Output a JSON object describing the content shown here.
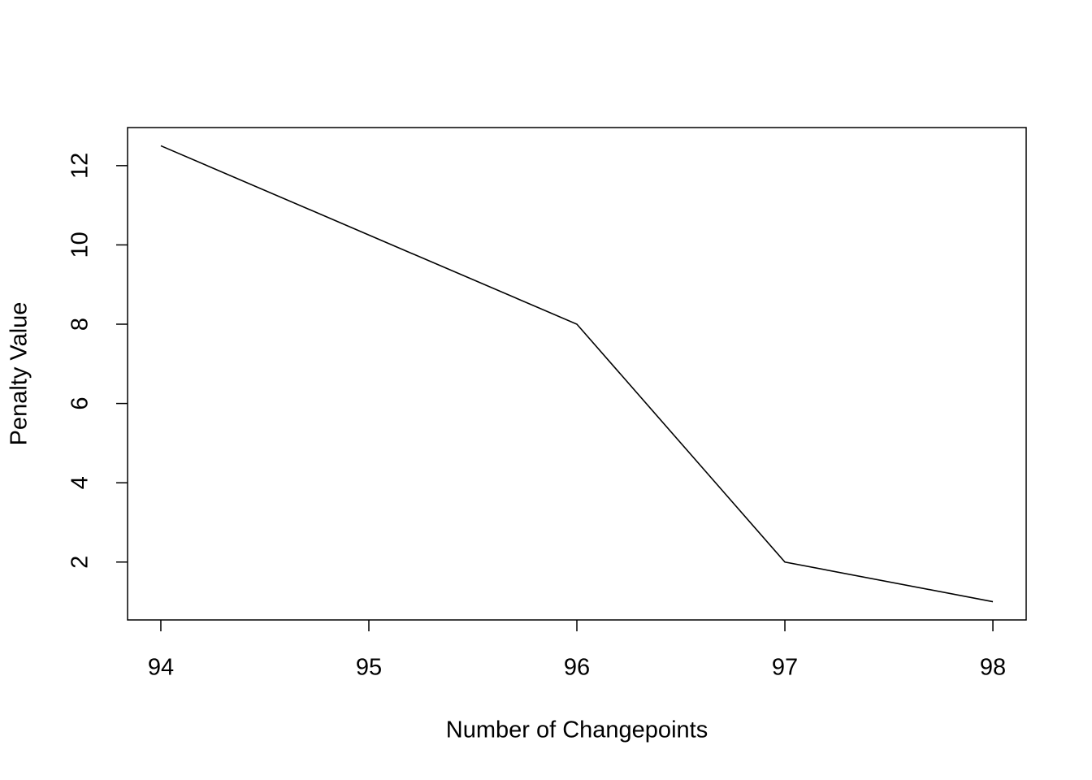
{
  "chart_data": {
    "type": "line",
    "x_label": "Number of Changepoints",
    "y_label": "Penalty Value",
    "x": [
      94,
      95,
      96,
      97,
      98
    ],
    "series": [
      {
        "color": "#000000",
        "values": [
          12.5,
          10.25,
          8,
          2,
          1
        ]
      }
    ],
    "xlim": [
      93.84,
      98.16
    ],
    "xticks": [
      94,
      95,
      96,
      97,
      98
    ],
    "ylim": [
      0.54,
      12.96
    ],
    "yticks": [
      2,
      4,
      6,
      8,
      10,
      12
    ]
  }
}
